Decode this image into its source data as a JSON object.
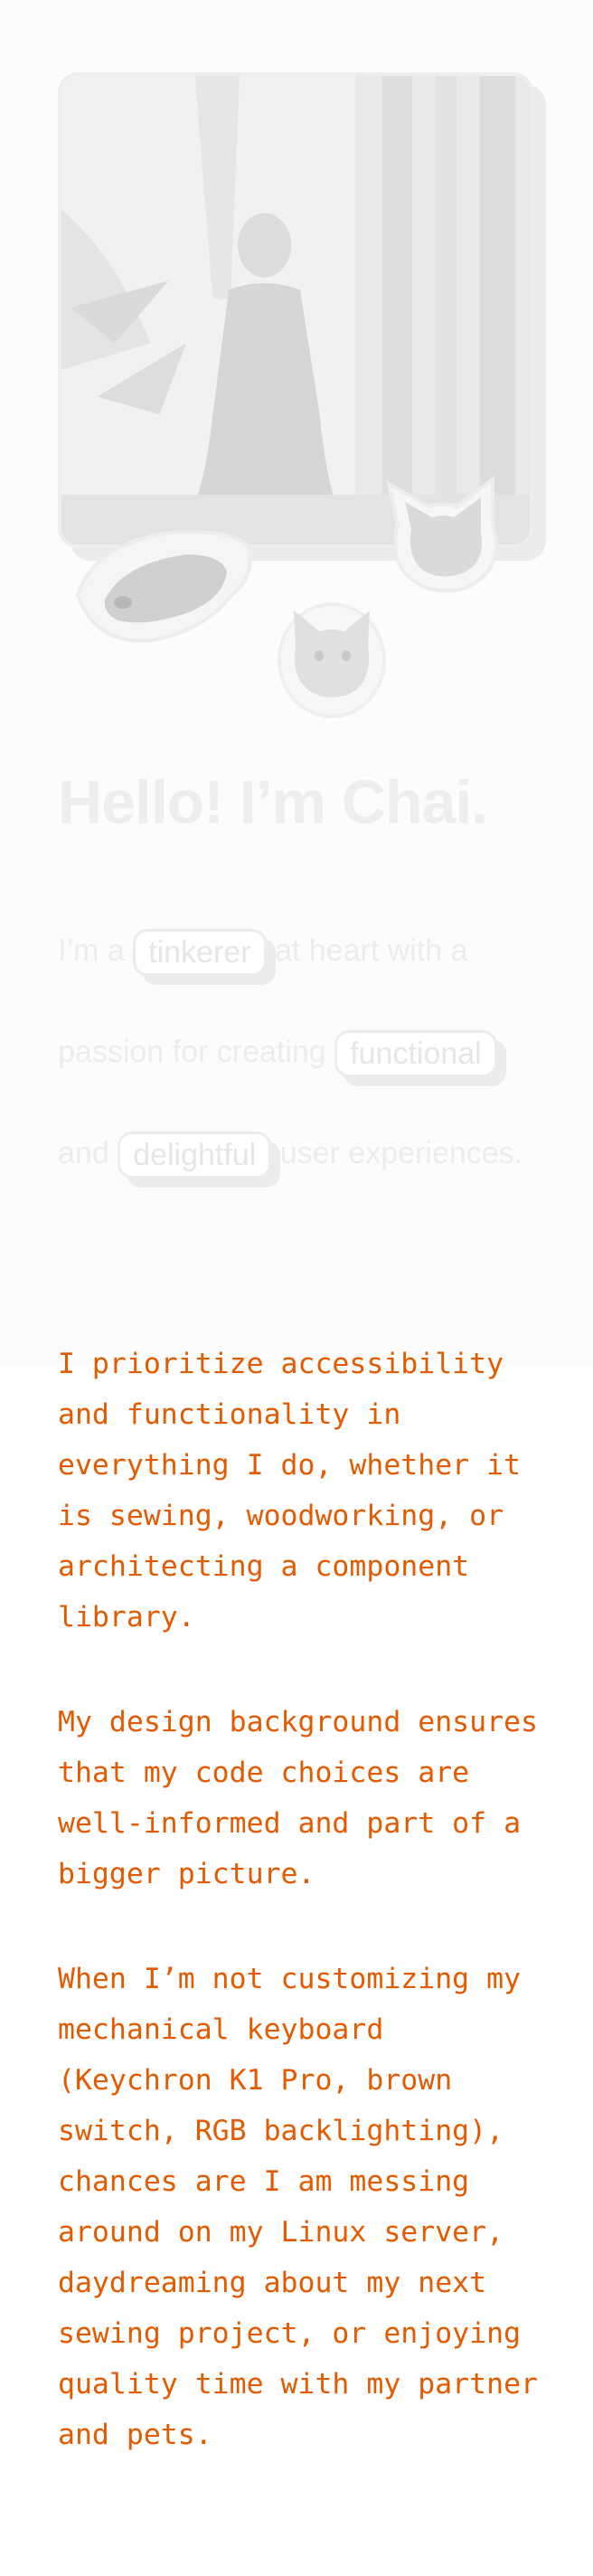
{
  "hero": {
    "title": "Hello! I’m Chai.",
    "intro": {
      "lead": "I’m a",
      "chip1": "tinkerer",
      "middle": "at heart with a passion for creating",
      "chip2": "functional",
      "connector": "and",
      "chip3": "delightful",
      "tail": "user experiences."
    }
  },
  "bio": {
    "paragraphs": [
      "I prioritize accessibility and functionality in everything I do, whether it is sewing, woodworking, or architecting a component library.",
      "My design background ensures that my code choices are well-informed and part of a bigger picture.",
      "When I’m not customizing my mechanical keyboard (Keychron K1 Pro, brown switch, RGB backlighting), chances are I am messing around on my Linux server, daydreaming about my next sewing project, or enjoying quality time with my partner and pets."
    ]
  },
  "colors": {
    "bio_text": "#e35a00",
    "faded_text": "#ececec",
    "hero_background": "#fcfcfc"
  }
}
